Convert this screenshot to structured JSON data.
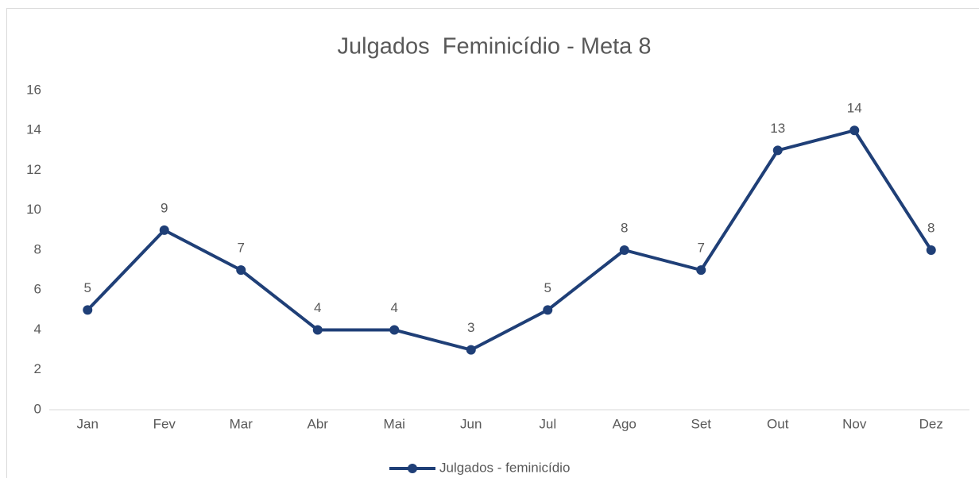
{
  "chart_data": {
    "type": "line",
    "title": "Julgados  Feminicídio - Meta 8",
    "categories": [
      "Jan",
      "Fev",
      "Mar",
      "Abr",
      "Mai",
      "Jun",
      "Jul",
      "Ago",
      "Set",
      "Out",
      "Nov",
      "Dez"
    ],
    "series": [
      {
        "name": "Julgados - feminicídio",
        "color": "#1f3f77",
        "values": [
          5,
          9,
          7,
          4,
          4,
          3,
          5,
          8,
          7,
          13,
          14,
          8
        ]
      }
    ],
    "ylim": [
      0,
      16
    ],
    "yticks": [
      0,
      2,
      4,
      6,
      8,
      10,
      12,
      14,
      16
    ],
    "grid": false,
    "legend": "bottom"
  }
}
